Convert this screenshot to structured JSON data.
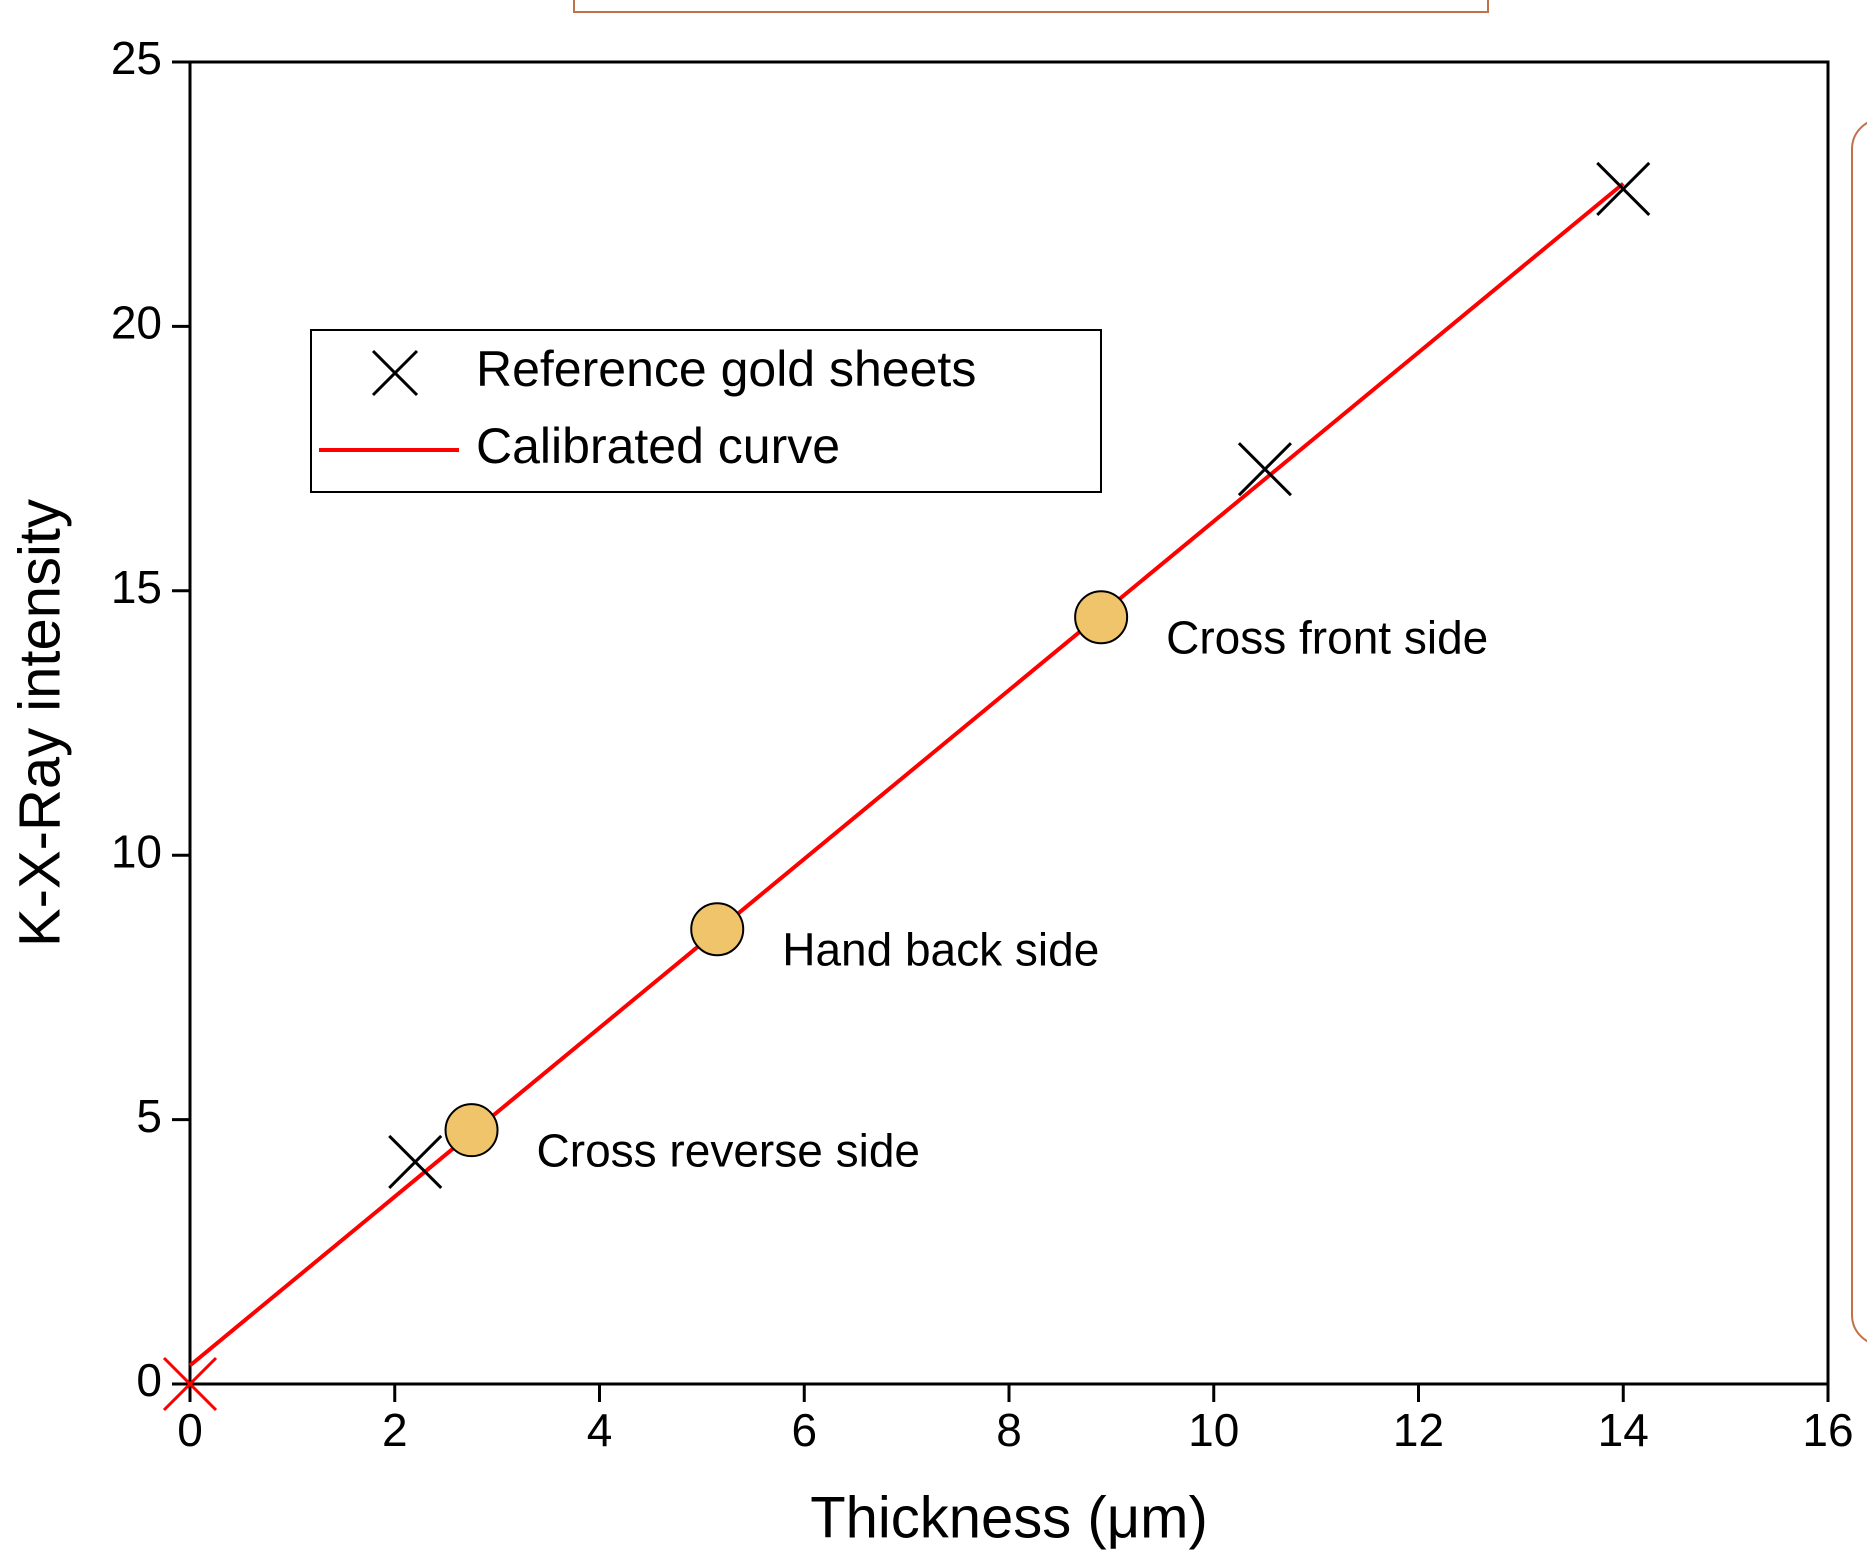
{
  "chart_data": {
    "type": "scatter",
    "x_label": "Thickness (μm)",
    "y_label": "K-X-Ray intensity",
    "xlim": [
      0,
      16
    ],
    "ylim": [
      0,
      25
    ],
    "xticks": [
      0,
      2,
      4,
      6,
      8,
      10,
      12,
      14,
      16
    ],
    "yticks": [
      0,
      5,
      10,
      15,
      20,
      25
    ],
    "legend": "upper left",
    "series": [
      {
        "name": "Reference gold sheets",
        "kind": "cross",
        "colors": [
          "#ff0000",
          "#000000",
          "#000000",
          "#000000"
        ],
        "x": [
          0,
          2.2,
          10.5,
          14
        ],
        "values": [
          0,
          4.2,
          17.3,
          22.6
        ]
      },
      {
        "name": "Calibrated curve",
        "kind": "line",
        "color": "#ff0000",
        "x": [
          0,
          14
        ],
        "values": [
          0.35,
          22.7
        ]
      }
    ],
    "annotations": [
      {
        "text": "Cross reverse side",
        "x": 2.75,
        "y": 4.8
      },
      {
        "text": "Hand back side",
        "x": 5.15,
        "y": 8.6
      },
      {
        "text": "Cross front side",
        "x": 8.9,
        "y": 14.5
      }
    ],
    "annotation_color": "#f0c46a"
  }
}
